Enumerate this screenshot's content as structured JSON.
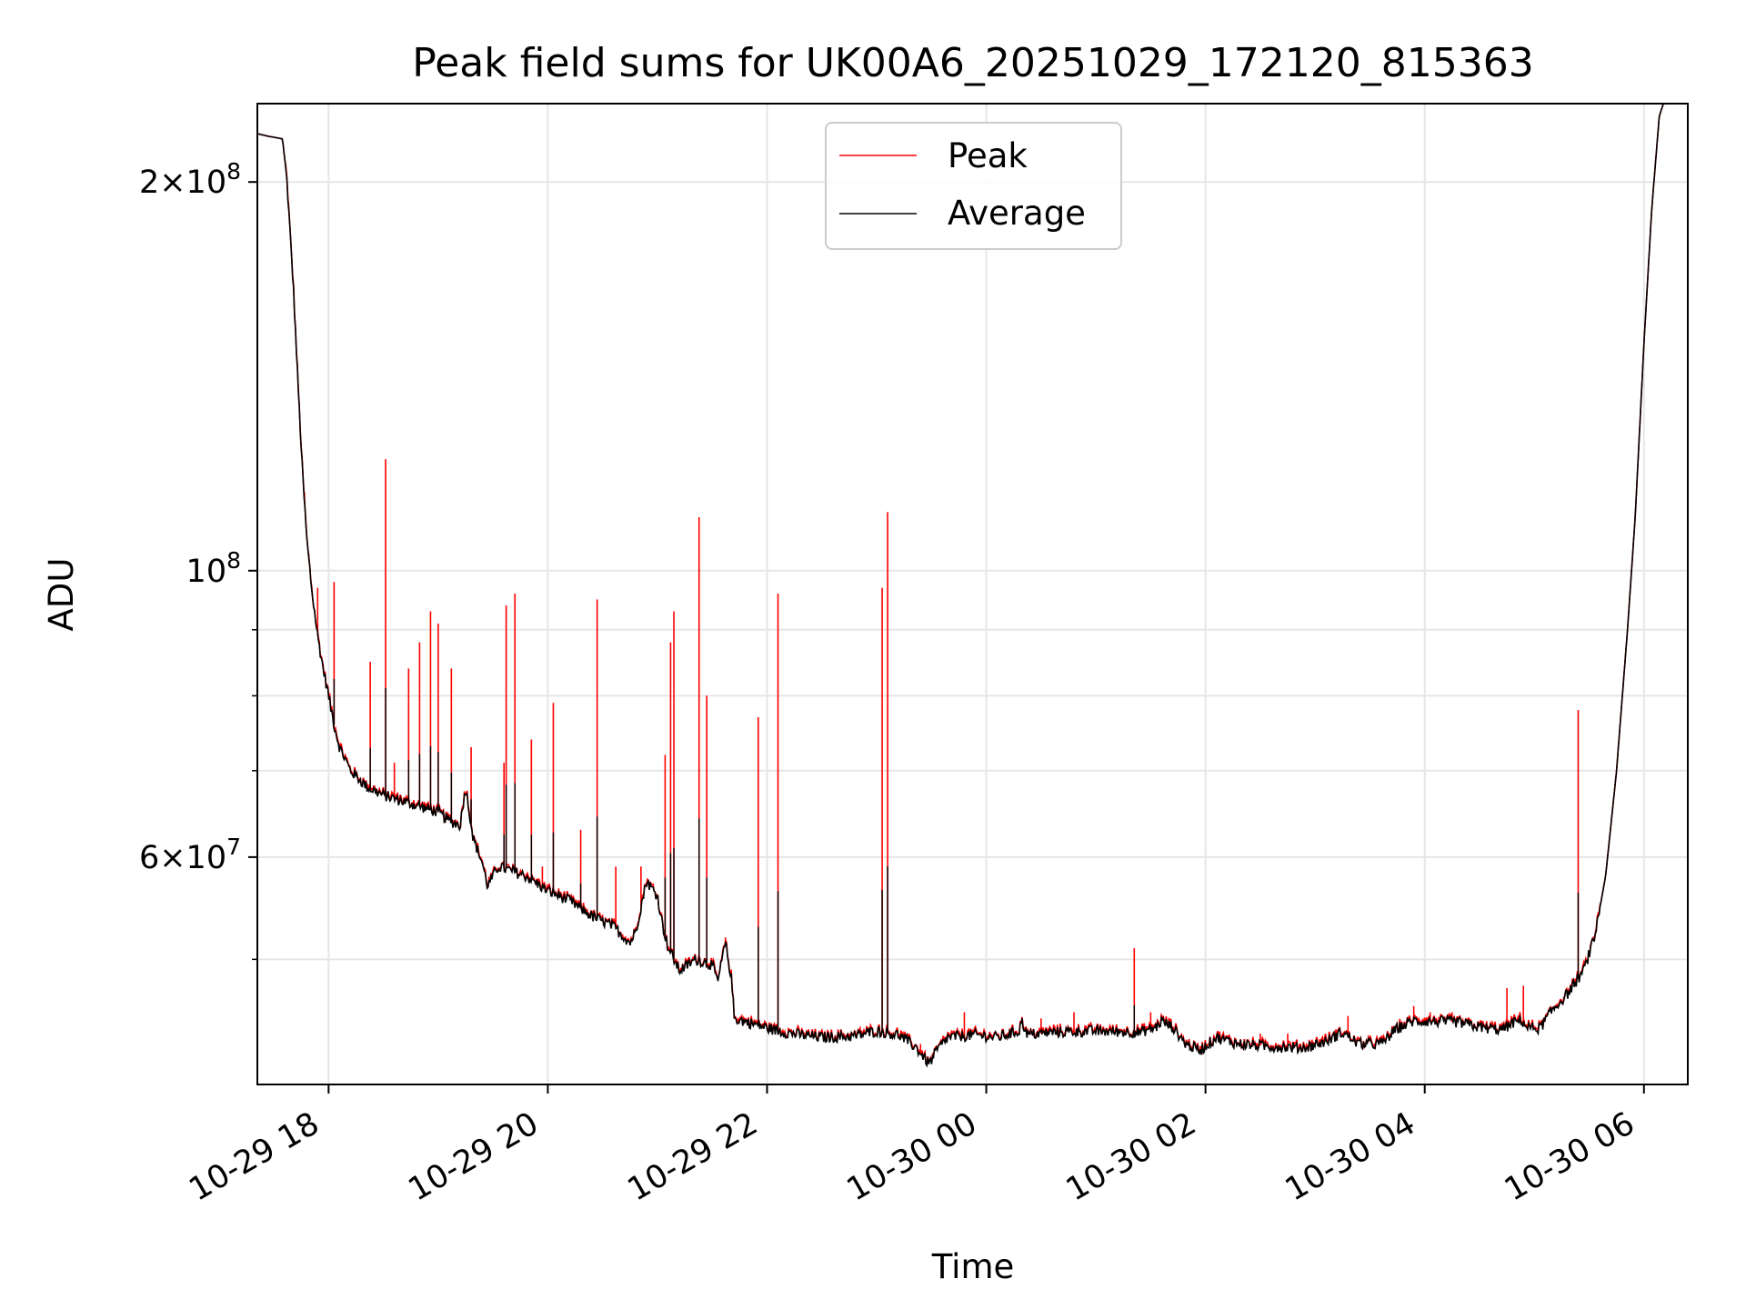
{
  "chart_data": {
    "type": "line",
    "title": "Peak field sums for UK00A6_20251029_172120_815363",
    "xlabel": "Time",
    "ylabel": "ADU",
    "yscale": "log",
    "ylim": [
      40000000,
      230000000
    ],
    "xlim": [
      -0.65,
      12.4
    ],
    "grid": true,
    "legend_position": "top-center",
    "x_unit": "hours since 2025-10-29 18:00",
    "xticks": [
      {
        "value": 0,
        "label": "10-29 18"
      },
      {
        "value": 2,
        "label": "10-29 20"
      },
      {
        "value": 4,
        "label": "10-29 22"
      },
      {
        "value": 6,
        "label": "10-30 00"
      },
      {
        "value": 8,
        "label": "10-30 02"
      },
      {
        "value": 10,
        "label": "10-30 04"
      },
      {
        "value": 12,
        "label": "10-30 06"
      }
    ],
    "yticks_major": [
      {
        "value": 60000000,
        "base": "6×10",
        "exp": "7"
      },
      {
        "value": 100000000,
        "base": "10",
        "exp": "8"
      },
      {
        "value": 200000000,
        "base": "2×10",
        "exp": "8"
      }
    ],
    "yticks_minor": [
      50000000,
      70000000,
      80000000,
      90000000
    ],
    "series": [
      {
        "name": "Peak",
        "color": "#ff0000",
        "baseline": [
          [
            -0.65,
            218000000
          ],
          [
            -0.55,
            217000000
          ],
          [
            -0.42,
            216000000
          ],
          [
            -0.38,
            200000000
          ],
          [
            -0.32,
            165000000
          ],
          [
            -0.28,
            140000000
          ],
          [
            -0.24,
            120000000
          ],
          [
            -0.2,
            106000000
          ],
          [
            -0.15,
            96000000
          ],
          [
            -0.1,
            89000000
          ],
          [
            -0.05,
            84000000
          ],
          [
            0.0,
            80000000
          ],
          [
            0.05,
            76000000
          ],
          [
            0.1,
            73000000
          ],
          [
            0.2,
            70000000
          ],
          [
            0.35,
            68000000
          ],
          [
            0.5,
            67000000
          ],
          [
            0.75,
            66000000
          ],
          [
            1.0,
            65000000
          ],
          [
            1.1,
            64000000
          ],
          [
            1.2,
            63500000
          ],
          [
            1.25,
            68000000
          ],
          [
            1.32,
            62000000
          ],
          [
            1.4,
            59500000
          ],
          [
            1.45,
            57000000
          ],
          [
            1.55,
            59000000
          ],
          [
            1.8,
            58000000
          ],
          [
            2.0,
            56500000
          ],
          [
            2.2,
            55500000
          ],
          [
            2.4,
            54000000
          ],
          [
            2.6,
            53000000
          ],
          [
            2.75,
            51500000
          ],
          [
            2.8,
            52500000
          ],
          [
            2.9,
            57500000
          ],
          [
            3.0,
            56000000
          ],
          [
            3.05,
            53000000
          ],
          [
            3.1,
            51000000
          ],
          [
            3.2,
            49000000
          ],
          [
            3.35,
            50000000
          ],
          [
            3.5,
            49500000
          ],
          [
            3.55,
            48000000
          ],
          [
            3.62,
            51500000
          ],
          [
            3.68,
            48000000
          ],
          [
            3.7,
            45000000
          ],
          [
            3.9,
            44500000
          ],
          [
            4.1,
            44000000
          ],
          [
            4.3,
            43700000
          ],
          [
            4.5,
            43500000
          ],
          [
            4.8,
            43600000
          ],
          [
            5.0,
            44000000
          ],
          [
            5.2,
            43700000
          ],
          [
            5.35,
            42800000
          ],
          [
            5.48,
            41500000
          ],
          [
            5.55,
            42500000
          ],
          [
            5.65,
            43500000
          ],
          [
            5.9,
            43700000
          ],
          [
            6.1,
            43500000
          ],
          [
            6.3,
            44000000
          ],
          [
            6.32,
            44800000
          ],
          [
            6.38,
            43700000
          ],
          [
            6.6,
            43900000
          ],
          [
            7.0,
            44000000
          ],
          [
            7.4,
            43900000
          ],
          [
            7.55,
            44300000
          ],
          [
            7.6,
            44800000
          ],
          [
            7.7,
            44300000
          ],
          [
            7.82,
            43000000
          ],
          [
            7.95,
            42500000
          ],
          [
            8.1,
            43500000
          ],
          [
            8.3,
            43000000
          ],
          [
            8.6,
            42800000
          ],
          [
            8.9,
            42700000
          ],
          [
            9.1,
            43200000
          ],
          [
            9.25,
            43900000
          ],
          [
            9.4,
            43000000
          ],
          [
            9.6,
            43000000
          ],
          [
            9.75,
            44200000
          ],
          [
            9.9,
            44800000
          ],
          [
            10.3,
            44700000
          ],
          [
            10.5,
            44300000
          ],
          [
            10.7,
            44100000
          ],
          [
            10.8,
            44600000
          ],
          [
            10.88,
            44900000
          ],
          [
            10.93,
            44300000
          ],
          [
            11.05,
            44200000
          ],
          [
            11.15,
            45500000
          ],
          [
            11.3,
            47000000
          ],
          [
            11.45,
            49000000
          ],
          [
            11.55,
            52000000
          ],
          [
            11.65,
            58000000
          ],
          [
            11.75,
            70000000
          ],
          [
            11.85,
            90000000
          ],
          [
            11.92,
            110000000
          ],
          [
            12.0,
            150000000
          ],
          [
            12.07,
            190000000
          ],
          [
            12.14,
            225000000
          ],
          [
            12.25,
            240000000
          ],
          [
            12.4,
            240000000
          ]
        ],
        "spikes": [
          [
            -0.22,
            115000000
          ],
          [
            -0.18,
            103000000
          ],
          [
            -0.1,
            97000000
          ],
          [
            0.0,
            80000000
          ],
          [
            0.05,
            98000000
          ],
          [
            0.38,
            85000000
          ],
          [
            0.52,
            122000000
          ],
          [
            0.6,
            71000000
          ],
          [
            0.73,
            84000000
          ],
          [
            0.83,
            88000000
          ],
          [
            0.93,
            93000000
          ],
          [
            1.0,
            91000000
          ],
          [
            1.12,
            84000000
          ],
          [
            1.3,
            73000000
          ],
          [
            1.6,
            71000000
          ],
          [
            1.62,
            94000000
          ],
          [
            1.7,
            96000000
          ],
          [
            1.85,
            74000000
          ],
          [
            1.95,
            59000000
          ],
          [
            2.05,
            79000000
          ],
          [
            2.3,
            63000000
          ],
          [
            2.45,
            95000000
          ],
          [
            2.62,
            59000000
          ],
          [
            2.85,
            59000000
          ],
          [
            3.07,
            72000000
          ],
          [
            3.12,
            88000000
          ],
          [
            3.15,
            93000000
          ],
          [
            3.38,
            110000000
          ],
          [
            3.45,
            80000000
          ],
          [
            3.62,
            52000000
          ],
          [
            3.92,
            77000000
          ],
          [
            4.1,
            96000000
          ],
          [
            5.05,
            97000000
          ],
          [
            5.1,
            111000000
          ],
          [
            5.4,
            43000000
          ],
          [
            5.8,
            45500000
          ],
          [
            6.5,
            45000000
          ],
          [
            6.8,
            45500000
          ],
          [
            7.35,
            51000000
          ],
          [
            7.5,
            45500000
          ],
          [
            8.5,
            43800000
          ],
          [
            8.75,
            43800000
          ],
          [
            9.3,
            45200000
          ],
          [
            9.9,
            46000000
          ],
          [
            10.05,
            45500000
          ],
          [
            10.25,
            45500000
          ],
          [
            10.75,
            47500000
          ],
          [
            10.9,
            47700000
          ],
          [
            11.4,
            78000000
          ]
        ]
      },
      {
        "name": "Average",
        "color": "#000000"
      }
    ]
  }
}
